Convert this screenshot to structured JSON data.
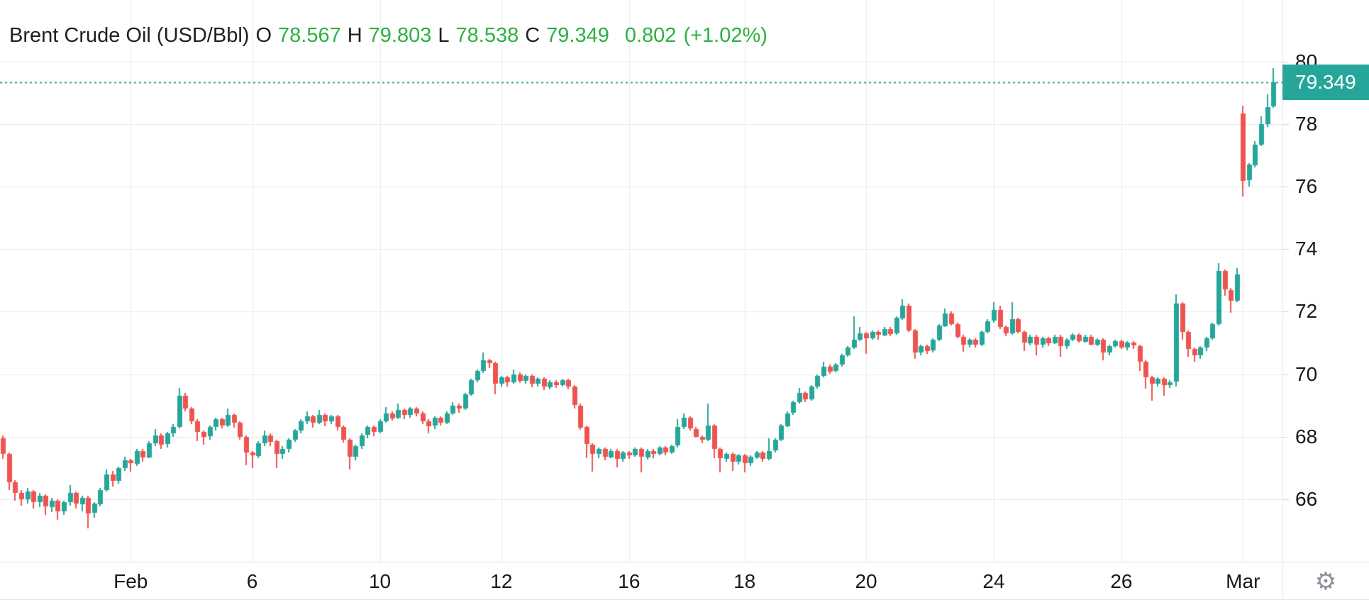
{
  "header": {
    "title": "Brent Crude Oil (USD/Bbl)",
    "o_label": "O",
    "o_value": "78.567",
    "h_label": "H",
    "h_value": "79.803",
    "l_label": "L",
    "l_value": "78.538",
    "c_label": "C",
    "c_value": "79.349",
    "change": "0.802",
    "change_pct": "(+1.02%)"
  },
  "price_axis": {
    "badge_value": "79.349"
  },
  "icons": {
    "settings_glyph": "⚙"
  },
  "colors": {
    "up": "#26a69a",
    "down": "#ef5350",
    "badge_bg": "#26a69a",
    "price_line": "#26a69a",
    "header_green": "#2cb043",
    "grid": "#e9eaec",
    "axis_border": "#e0e3e6",
    "text": "#17181b"
  },
  "chart_data": {
    "type": "candlestick",
    "title": "Brent Crude Oil (USD/Bbl)",
    "last_candle": {
      "open": 78.567,
      "high": 79.803,
      "low": 78.538,
      "close": 79.349,
      "change": 0.802,
      "change_pct": "+1.02%"
    },
    "last_price": 79.349,
    "price_line": 79.349,
    "y_axis": {
      "min": 64.0,
      "max": 81.97,
      "ticks": [
        66,
        68,
        70,
        72,
        74,
        76,
        78,
        80
      ]
    },
    "x_axis": {
      "tick_labels": [
        "Feb",
        "6",
        "10",
        "12",
        "16",
        "18",
        "20",
        "24",
        "26",
        "Mar"
      ],
      "tick_indices": [
        21,
        41,
        62,
        82,
        103,
        122,
        142,
        163,
        184,
        204
      ]
    },
    "grid": true,
    "legend_position": "none",
    "candles": [
      [
        67.95,
        68.05,
        67.3,
        67.45
      ],
      [
        67.45,
        67.5,
        66.3,
        66.55
      ],
      [
        66.55,
        66.6,
        65.95,
        66.2
      ],
      [
        66.2,
        66.3,
        65.8,
        66.0
      ],
      [
        66.0,
        66.35,
        65.85,
        66.25
      ],
      [
        66.25,
        66.3,
        65.7,
        65.9
      ],
      [
        65.9,
        66.2,
        65.75,
        66.1
      ],
      [
        66.1,
        66.15,
        65.5,
        65.75
      ],
      [
        65.75,
        66.05,
        65.6,
        65.95
      ],
      [
        65.95,
        66.0,
        65.35,
        65.6
      ],
      [
        65.6,
        65.95,
        65.5,
        65.9
      ],
      [
        65.9,
        66.45,
        65.8,
        66.2
      ],
      [
        66.2,
        66.25,
        65.7,
        65.85
      ],
      [
        65.85,
        66.1,
        65.6,
        66.05
      ],
      [
        66.05,
        66.1,
        65.05,
        65.55
      ],
      [
        65.55,
        65.9,
        65.4,
        65.85
      ],
      [
        65.85,
        66.35,
        65.75,
        66.3
      ],
      [
        66.3,
        66.95,
        66.25,
        66.8
      ],
      [
        66.8,
        66.9,
        66.4,
        66.6
      ],
      [
        66.6,
        67.05,
        66.5,
        67.0
      ],
      [
        67.0,
        67.35,
        66.9,
        67.25
      ],
      [
        67.25,
        67.3,
        66.9,
        67.15
      ],
      [
        67.15,
        67.6,
        67.05,
        67.55
      ],
      [
        67.55,
        67.6,
        67.2,
        67.35
      ],
      [
        67.35,
        67.85,
        67.3,
        67.8
      ],
      [
        67.8,
        68.25,
        67.7,
        68.05
      ],
      [
        68.05,
        68.1,
        67.6,
        67.75
      ],
      [
        67.75,
        68.15,
        67.65,
        68.1
      ],
      [
        68.1,
        68.4,
        68.0,
        68.3
      ],
      [
        68.3,
        69.55,
        68.25,
        69.3
      ],
      [
        69.3,
        69.4,
        68.8,
        68.9
      ],
      [
        68.9,
        68.95,
        68.4,
        68.5
      ],
      [
        68.5,
        68.55,
        67.85,
        68.15
      ],
      [
        68.15,
        68.2,
        67.75,
        68.0
      ],
      [
        68.0,
        68.35,
        67.9,
        68.3
      ],
      [
        68.3,
        68.6,
        68.2,
        68.55
      ],
      [
        68.55,
        68.6,
        68.25,
        68.35
      ],
      [
        68.35,
        68.9,
        68.3,
        68.7
      ],
      [
        68.7,
        68.75,
        68.3,
        68.45
      ],
      [
        68.45,
        68.5,
        67.9,
        68.0
      ],
      [
        68.0,
        68.05,
        67.1,
        67.5
      ],
      [
        67.5,
        67.55,
        67.0,
        67.4
      ],
      [
        67.4,
        67.85,
        67.3,
        67.8
      ],
      [
        67.8,
        68.2,
        67.7,
        68.05
      ],
      [
        68.05,
        68.1,
        67.7,
        67.85
      ],
      [
        67.85,
        67.9,
        67.0,
        67.45
      ],
      [
        67.45,
        67.7,
        67.3,
        67.6
      ],
      [
        67.6,
        67.95,
        67.5,
        67.9
      ],
      [
        67.9,
        68.25,
        67.85,
        68.2
      ],
      [
        68.2,
        68.55,
        68.1,
        68.5
      ],
      [
        68.5,
        68.8,
        68.4,
        68.65
      ],
      [
        68.65,
        68.7,
        68.3,
        68.45
      ],
      [
        68.45,
        68.85,
        68.4,
        68.7
      ],
      [
        68.7,
        68.75,
        68.35,
        68.5
      ],
      [
        68.5,
        68.7,
        68.4,
        68.65
      ],
      [
        68.65,
        68.7,
        68.2,
        68.3
      ],
      [
        68.3,
        68.35,
        67.8,
        67.9
      ],
      [
        67.9,
        67.95,
        66.95,
        67.35
      ],
      [
        67.35,
        67.75,
        67.25,
        67.7
      ],
      [
        67.7,
        68.1,
        67.6,
        68.05
      ],
      [
        68.05,
        68.35,
        67.95,
        68.3
      ],
      [
        68.3,
        68.35,
        68.0,
        68.15
      ],
      [
        68.15,
        68.55,
        68.1,
        68.5
      ],
      [
        68.5,
        68.95,
        68.45,
        68.75
      ],
      [
        68.75,
        68.8,
        68.5,
        68.6
      ],
      [
        68.6,
        69.05,
        68.55,
        68.85
      ],
      [
        68.85,
        68.9,
        68.55,
        68.7
      ],
      [
        68.7,
        68.95,
        68.6,
        68.9
      ],
      [
        68.9,
        68.95,
        68.65,
        68.75
      ],
      [
        68.75,
        68.8,
        68.4,
        68.5
      ],
      [
        68.5,
        68.55,
        68.1,
        68.35
      ],
      [
        68.35,
        68.65,
        68.25,
        68.6
      ],
      [
        68.6,
        68.65,
        68.35,
        68.45
      ],
      [
        68.45,
        68.8,
        68.4,
        68.75
      ],
      [
        68.75,
        69.1,
        68.7,
        69.0
      ],
      [
        69.0,
        69.05,
        68.75,
        68.9
      ],
      [
        68.9,
        69.4,
        68.85,
        69.35
      ],
      [
        69.35,
        69.85,
        69.3,
        69.8
      ],
      [
        69.8,
        70.15,
        69.75,
        70.1
      ],
      [
        70.1,
        70.7,
        70.05,
        70.45
      ],
      [
        70.45,
        70.5,
        70.2,
        70.35
      ],
      [
        70.35,
        70.4,
        69.35,
        69.7
      ],
      [
        69.7,
        69.95,
        69.6,
        69.9
      ],
      [
        69.9,
        69.95,
        69.6,
        69.75
      ],
      [
        69.75,
        70.15,
        69.7,
        70.0
      ],
      [
        70.0,
        70.05,
        69.7,
        69.8
      ],
      [
        69.8,
        70.0,
        69.7,
        69.95
      ],
      [
        69.95,
        70.0,
        69.6,
        69.7
      ],
      [
        69.7,
        69.9,
        69.6,
        69.85
      ],
      [
        69.85,
        69.9,
        69.5,
        69.6
      ],
      [
        69.6,
        69.8,
        69.5,
        69.75
      ],
      [
        69.75,
        69.8,
        69.55,
        69.65
      ],
      [
        69.65,
        69.85,
        69.6,
        69.8
      ],
      [
        69.8,
        69.85,
        69.5,
        69.6
      ],
      [
        69.6,
        69.65,
        68.9,
        69.0
      ],
      [
        69.0,
        69.05,
        68.2,
        68.3
      ],
      [
        68.3,
        68.35,
        67.3,
        67.75
      ],
      [
        67.75,
        67.8,
        66.9,
        67.45
      ],
      [
        67.45,
        67.65,
        67.3,
        67.6
      ],
      [
        67.6,
        67.65,
        67.25,
        67.35
      ],
      [
        67.35,
        67.6,
        67.3,
        67.55
      ],
      [
        67.55,
        67.6,
        67.0,
        67.3
      ],
      [
        67.3,
        67.55,
        67.2,
        67.5
      ],
      [
        67.5,
        67.55,
        67.3,
        67.4
      ],
      [
        67.4,
        67.65,
        67.35,
        67.6
      ],
      [
        67.6,
        67.65,
        66.85,
        67.35
      ],
      [
        67.35,
        67.6,
        67.25,
        67.55
      ],
      [
        67.55,
        67.6,
        67.3,
        67.45
      ],
      [
        67.45,
        67.7,
        67.4,
        67.65
      ],
      [
        67.65,
        67.7,
        67.4,
        67.5
      ],
      [
        67.5,
        67.75,
        67.45,
        67.7
      ],
      [
        67.7,
        68.55,
        67.65,
        68.3
      ],
      [
        68.3,
        68.75,
        68.25,
        68.6
      ],
      [
        68.6,
        68.65,
        68.2,
        68.25
      ],
      [
        68.25,
        68.3,
        67.95,
        68.0
      ],
      [
        68.0,
        68.05,
        67.8,
        67.9
      ],
      [
        67.9,
        69.05,
        67.85,
        68.35
      ],
      [
        68.35,
        68.4,
        67.3,
        67.6
      ],
      [
        67.6,
        67.65,
        66.85,
        67.3
      ],
      [
        67.3,
        67.5,
        67.2,
        67.45
      ],
      [
        67.45,
        67.5,
        66.9,
        67.2
      ],
      [
        67.2,
        67.45,
        67.1,
        67.4
      ],
      [
        67.4,
        67.45,
        66.85,
        67.15
      ],
      [
        67.15,
        67.4,
        67.05,
        67.35
      ],
      [
        67.35,
        67.55,
        67.3,
        67.5
      ],
      [
        67.5,
        67.55,
        67.2,
        67.3
      ],
      [
        67.3,
        67.95,
        67.25,
        67.55
      ],
      [
        67.55,
        67.95,
        67.5,
        67.9
      ],
      [
        67.9,
        68.4,
        67.85,
        68.35
      ],
      [
        68.35,
        68.8,
        68.3,
        68.75
      ],
      [
        68.75,
        69.15,
        68.7,
        69.1
      ],
      [
        69.1,
        69.55,
        69.05,
        69.4
      ],
      [
        69.4,
        69.45,
        69.1,
        69.2
      ],
      [
        69.2,
        69.65,
        69.15,
        69.6
      ],
      [
        69.6,
        70.0,
        69.55,
        69.95
      ],
      [
        69.95,
        70.4,
        69.9,
        70.25
      ],
      [
        70.25,
        70.3,
        70.0,
        70.1
      ],
      [
        70.1,
        70.35,
        70.05,
        70.3
      ],
      [
        70.3,
        70.65,
        70.25,
        70.6
      ],
      [
        70.6,
        70.9,
        70.55,
        70.85
      ],
      [
        70.85,
        71.85,
        70.8,
        71.1
      ],
      [
        71.1,
        71.5,
        71.05,
        71.3
      ],
      [
        71.3,
        71.35,
        70.65,
        71.15
      ],
      [
        71.15,
        71.4,
        71.1,
        71.35
      ],
      [
        71.35,
        71.4,
        71.1,
        71.25
      ],
      [
        71.25,
        71.5,
        71.2,
        71.45
      ],
      [
        71.45,
        71.5,
        71.2,
        71.3
      ],
      [
        71.3,
        71.85,
        71.25,
        71.8
      ],
      [
        71.8,
        72.4,
        71.75,
        72.2
      ],
      [
        72.2,
        72.25,
        71.35,
        71.4
      ],
      [
        71.4,
        71.45,
        70.5,
        70.7
      ],
      [
        70.7,
        70.95,
        70.6,
        70.9
      ],
      [
        70.9,
        70.95,
        70.65,
        70.75
      ],
      [
        70.75,
        71.15,
        70.7,
        71.1
      ],
      [
        71.1,
        71.6,
        71.05,
        71.55
      ],
      [
        71.55,
        72.1,
        71.5,
        71.95
      ],
      [
        71.95,
        72.0,
        71.55,
        71.6
      ],
      [
        71.6,
        71.65,
        71.15,
        71.2
      ],
      [
        71.2,
        71.25,
        70.7,
        70.95
      ],
      [
        70.95,
        71.15,
        70.85,
        71.1
      ],
      [
        71.1,
        71.15,
        70.85,
        70.95
      ],
      [
        70.95,
        71.4,
        70.9,
        71.35
      ],
      [
        71.35,
        71.75,
        71.3,
        71.7
      ],
      [
        71.7,
        72.3,
        71.65,
        72.05
      ],
      [
        72.05,
        72.2,
        71.45,
        71.5
      ],
      [
        71.5,
        71.55,
        71.2,
        71.3
      ],
      [
        71.3,
        72.3,
        71.25,
        71.75
      ],
      [
        71.75,
        71.8,
        71.3,
        71.35
      ],
      [
        71.35,
        71.4,
        70.75,
        71.0
      ],
      [
        71.0,
        71.25,
        70.9,
        71.2
      ],
      [
        71.2,
        71.25,
        70.6,
        70.95
      ],
      [
        70.95,
        71.2,
        70.85,
        71.15
      ],
      [
        71.15,
        71.2,
        70.9,
        71.0
      ],
      [
        71.0,
        71.25,
        70.95,
        71.2
      ],
      [
        71.2,
        71.25,
        70.55,
        70.9
      ],
      [
        70.9,
        71.15,
        70.8,
        71.1
      ],
      [
        71.1,
        71.3,
        71.05,
        71.25
      ],
      [
        71.25,
        71.3,
        71.0,
        71.05
      ],
      [
        71.05,
        71.25,
        71.0,
        71.2
      ],
      [
        71.2,
        71.25,
        70.9,
        70.95
      ],
      [
        70.95,
        71.15,
        70.9,
        71.1
      ],
      [
        71.1,
        71.15,
        70.45,
        70.7
      ],
      [
        70.7,
        70.95,
        70.6,
        70.9
      ],
      [
        70.9,
        71.1,
        70.85,
        71.05
      ],
      [
        71.05,
        71.1,
        70.8,
        70.85
      ],
      [
        70.85,
        71.05,
        70.75,
        71.0
      ],
      [
        71.0,
        71.05,
        70.8,
        70.9
      ],
      [
        70.9,
        70.95,
        70.1,
        70.4
      ],
      [
        70.4,
        70.45,
        69.55,
        69.9
      ],
      [
        69.9,
        69.95,
        69.15,
        69.7
      ],
      [
        69.7,
        69.9,
        69.6,
        69.85
      ],
      [
        69.85,
        69.9,
        69.3,
        69.65
      ],
      [
        69.65,
        69.8,
        69.55,
        69.75
      ],
      [
        69.75,
        72.55,
        69.6,
        72.25
      ],
      [
        72.25,
        72.3,
        71.1,
        71.35
      ],
      [
        71.35,
        71.4,
        70.55,
        70.8
      ],
      [
        70.8,
        70.85,
        70.4,
        70.6
      ],
      [
        70.6,
        70.9,
        70.5,
        70.85
      ],
      [
        70.85,
        71.2,
        70.75,
        71.15
      ],
      [
        71.15,
        71.65,
        71.1,
        71.6
      ],
      [
        71.6,
        73.55,
        71.55,
        73.3
      ],
      [
        73.3,
        73.35,
        72.5,
        72.7
      ],
      [
        72.7,
        72.75,
        71.95,
        72.35
      ],
      [
        72.35,
        73.4,
        72.3,
        73.2
      ],
      [
        78.35,
        78.6,
        75.7,
        76.2
      ],
      [
        76.2,
        76.75,
        76.0,
        76.7
      ],
      [
        76.7,
        77.45,
        76.6,
        77.35
      ],
      [
        77.35,
        78.25,
        77.3,
        78.0
      ],
      [
        78.0,
        78.95,
        77.9,
        78.55
      ],
      [
        78.567,
        79.803,
        78.538,
        79.349
      ]
    ]
  }
}
